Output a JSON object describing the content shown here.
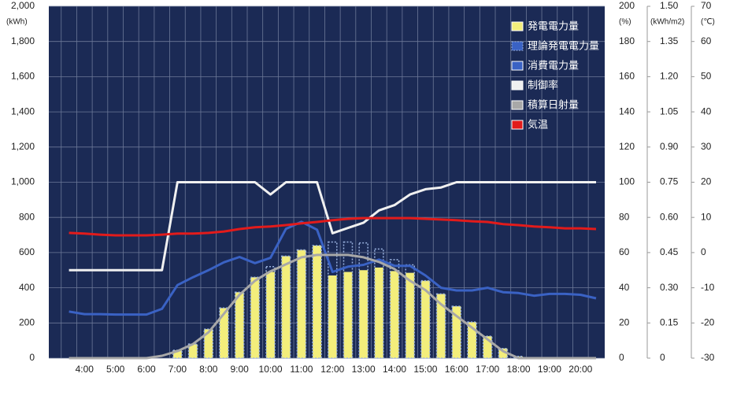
{
  "chart_data": {
    "type": "combo",
    "x": [
      3.5,
      4,
      4.5,
      5,
      5.5,
      6,
      6.5,
      7,
      7.5,
      8,
      8.5,
      9,
      9.5,
      10,
      10.5,
      11,
      11.5,
      12,
      12.5,
      13,
      13.5,
      14,
      14.5,
      15,
      15.5,
      16,
      16.5,
      17,
      17.5,
      18,
      18.5,
      19,
      19.5,
      20,
      20.5
    ],
    "xlim": [
      2.85,
      20.78
    ],
    "xticks": [
      {
        "value": 4,
        "label": "4:00"
      },
      {
        "value": 5,
        "label": "5:00"
      },
      {
        "value": 6,
        "label": "6:00"
      },
      {
        "value": 7,
        "label": "7:00"
      },
      {
        "value": 8,
        "label": "8:00"
      },
      {
        "value": 9,
        "label": "9:00"
      },
      {
        "value": 10,
        "label": "10:00"
      },
      {
        "value": 11,
        "label": "11:00"
      },
      {
        "value": 12,
        "label": "12:00"
      },
      {
        "value": 13,
        "label": "13:00"
      },
      {
        "value": 14,
        "label": "14:00"
      },
      {
        "value": 15,
        "label": "15:00"
      },
      {
        "value": 16,
        "label": "16:00"
      },
      {
        "value": 17,
        "label": "17:00"
      },
      {
        "value": 18,
        "label": "18:00"
      },
      {
        "value": 19,
        "label": "19:00"
      },
      {
        "value": 20,
        "label": "20:00"
      }
    ],
    "ylabel": "(kWh)",
    "ylim": [
      0,
      2000
    ],
    "yticks": [
      0,
      200,
      400,
      600,
      800,
      {
        "value": 1000,
        "label": "1,000"
      },
      {
        "value": 1200,
        "label": "1,200"
      },
      {
        "value": 1400,
        "label": "1,400"
      },
      {
        "value": 1600,
        "label": "1,600"
      },
      {
        "value": 1800,
        "label": "1,800"
      },
      {
        "value": 2000,
        "label": "2,000"
      }
    ],
    "y2label": "(%)",
    "y2lim": [
      0,
      200
    ],
    "y2ticks": [
      0,
      20,
      40,
      60,
      80,
      100,
      120,
      140,
      160,
      180,
      200
    ],
    "y3label": "(kWh/m2)",
    "y3lim": [
      0,
      1.5
    ],
    "y3ticks": [
      0,
      0.15,
      {
        "value": 0.3,
        "label": "0.30"
      },
      0.45,
      {
        "value": 0.6,
        "label": "0.60"
      },
      0.75,
      {
        "value": 0.9,
        "label": "0.90"
      },
      1.05,
      {
        "value": 1.2,
        "label": "1.20"
      },
      1.35,
      {
        "value": 1.5,
        "label": "1.50"
      }
    ],
    "y4label": "(℃)",
    "y4lim": [
      -30,
      70
    ],
    "y4ticks": [
      -30,
      -20,
      -10,
      0,
      10,
      20,
      30,
      40,
      50,
      60,
      70
    ],
    "grid": true,
    "legend": "upper right",
    "background": "#1b2a55",
    "series": [
      {
        "name": "発電電力量",
        "type": "bar",
        "axis": "y",
        "color": "#f3ee7b",
        "values": [
          0,
          0,
          0,
          0,
          0,
          0,
          0,
          45,
          80,
          165,
          285,
          375,
          460,
          490,
          580,
          615,
          640,
          470,
          490,
          500,
          515,
          495,
          485,
          440,
          365,
          295,
          205,
          125,
          55,
          10,
          0,
          0,
          0,
          0,
          0
        ]
      },
      {
        "name": "理論発電電力量",
        "type": "bar",
        "axis": "y",
        "color": "#9bb3e0",
        "line_style": "dashed",
        "values": [
          0,
          0,
          0,
          0,
          0,
          0,
          0,
          45,
          80,
          165,
          285,
          375,
          460,
          520,
          580,
          615,
          640,
          660,
          660,
          655,
          620,
          560,
          530,
          440,
          365,
          295,
          205,
          125,
          55,
          10,
          0,
          0,
          0,
          0,
          0
        ]
      },
      {
        "name": "消費電力量",
        "type": "line",
        "axis": "y",
        "color": "#3a62c4",
        "values": [
          265,
          250,
          250,
          248,
          248,
          248,
          280,
          415,
          460,
          500,
          545,
          575,
          540,
          570,
          735,
          775,
          730,
          490,
          520,
          530,
          560,
          525,
          525,
          470,
          400,
          385,
          385,
          400,
          375,
          370,
          355,
          365,
          365,
          360,
          340
        ]
      },
      {
        "name": "制御率",
        "type": "line",
        "axis": "y2",
        "color": "#f0f0f0",
        "values": [
          50,
          50,
          50,
          50,
          50,
          50,
          50,
          100,
          100,
          100,
          100,
          100,
          100,
          93,
          100,
          100,
          100,
          71,
          74,
          77,
          84,
          87,
          93,
          96,
          97,
          100,
          100,
          100,
          100,
          100,
          100,
          100,
          100,
          100,
          100
        ]
      },
      {
        "name": "積算日射量",
        "type": "line",
        "axis": "y3",
        "color": "#a8a8a8",
        "values": [
          0,
          0,
          0,
          0,
          0,
          0,
          0.01,
          0.03,
          0.06,
          0.11,
          0.19,
          0.27,
          0.33,
          0.37,
          0.4,
          0.43,
          0.44,
          0.44,
          0.44,
          0.43,
          0.41,
          0.38,
          0.33,
          0.29,
          0.23,
          0.18,
          0.13,
          0.08,
          0.03,
          0,
          0,
          0,
          0,
          0,
          0
        ]
      },
      {
        "name": "気温",
        "type": "line",
        "axis": "y4",
        "color": "#e21b1b",
        "values": [
          5.6,
          5.4,
          5.1,
          4.9,
          4.9,
          4.9,
          5.1,
          5.4,
          5.4,
          5.6,
          6.0,
          6.7,
          7.2,
          7.4,
          7.8,
          8.3,
          8.7,
          9.2,
          9.6,
          9.8,
          9.8,
          9.8,
          9.8,
          9.6,
          9.4,
          9.2,
          8.9,
          8.7,
          8.1,
          7.8,
          7.4,
          7.2,
          6.9,
          6.9,
          6.7
        ]
      }
    ]
  }
}
